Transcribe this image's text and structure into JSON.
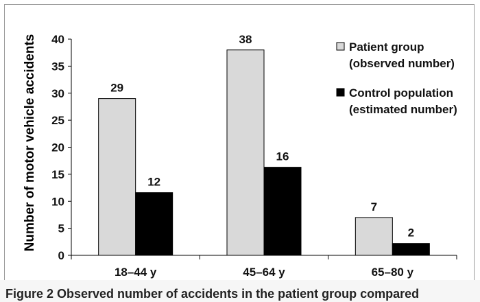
{
  "chart_data": {
    "type": "bar",
    "title": "",
    "xlabel": "",
    "ylabel": "Number of motor vehicle accidents",
    "ylim": [
      0,
      40
    ],
    "yticks": [
      0,
      5,
      10,
      15,
      20,
      25,
      30,
      35,
      40
    ],
    "categories": [
      "18–44 y",
      "45–64 y",
      "65–80 y"
    ],
    "series": [
      {
        "name": "Patient group (observed number)",
        "legend_lines": [
          "Patient group",
          "(observed number)"
        ],
        "values": [
          29,
          38,
          7
        ],
        "color": "#d9d9d9"
      },
      {
        "name": "Control population (estimated number)",
        "legend_lines": [
          "Control population",
          "(estimated number)"
        ],
        "values": [
          12,
          16,
          2
        ],
        "color": "#000000",
        "plotted_values": [
          11.6,
          16.3,
          2.2
        ]
      }
    ],
    "data_labels": [
      [
        "29",
        "12"
      ],
      [
        "38",
        "16"
      ],
      [
        "7",
        "2"
      ]
    ],
    "legend_position": "top-right",
    "grid": false
  },
  "caption": {
    "text": "Figure 2   Observed number of accidents in the patient group compared"
  }
}
